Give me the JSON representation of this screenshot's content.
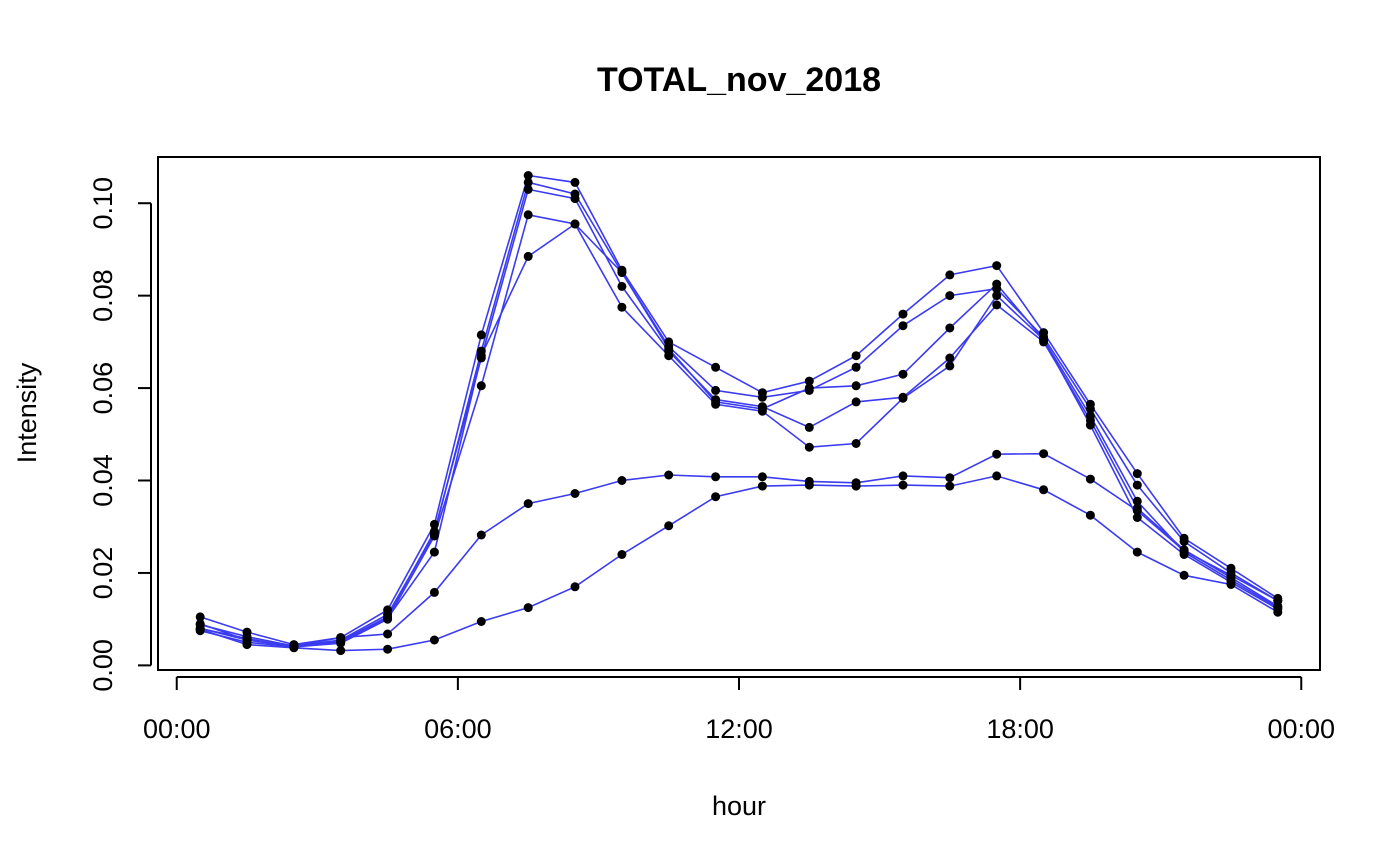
{
  "chart_data": {
    "type": "line",
    "title": "TOTAL_nov_2018",
    "xlabel": "hour",
    "ylabel": "Intensity",
    "x_tick_labels": [
      "00:00",
      "06:00",
      "12:00",
      "18:00",
      "00:00"
    ],
    "x_tick_hours": [
      0,
      6,
      12,
      18,
      24
    ],
    "y_ticks": [
      0.0,
      0.02,
      0.04,
      0.06,
      0.08,
      0.1
    ],
    "y_tick_labels": [
      "0.00",
      "0.02",
      "0.04",
      "0.06",
      "0.08",
      "0.10"
    ],
    "xlim": [
      -0.4,
      24.4
    ],
    "ylim": [
      -0.001,
      0.11
    ],
    "grid": false,
    "legend": "none",
    "x": [
      0.5,
      1.5,
      2.5,
      3.5,
      4.5,
      5.5,
      6.5,
      7.5,
      8.5,
      9.5,
      10.5,
      11.5,
      12.5,
      13.5,
      14.5,
      15.5,
      16.5,
      17.5,
      18.5,
      19.5,
      20.5,
      21.5,
      22.5,
      23.5
    ],
    "series": [
      {
        "values": [
          0.0105,
          0.0072,
          0.0045,
          0.006,
          0.012,
          0.0305,
          0.0715,
          0.106,
          0.1045,
          0.0855,
          0.07,
          0.0645,
          0.059,
          0.0615,
          0.067,
          0.076,
          0.0845,
          0.0865,
          0.072,
          0.0565,
          0.0415,
          0.0275,
          0.021,
          0.0145
        ]
      },
      {
        "values": [
          0.0088,
          0.0062,
          0.0042,
          0.0055,
          0.011,
          0.0285,
          0.068,
          0.1045,
          0.102,
          0.085,
          0.069,
          0.0595,
          0.058,
          0.0595,
          0.0645,
          0.0735,
          0.08,
          0.0815,
          0.071,
          0.0555,
          0.039,
          0.0268,
          0.02,
          0.014
        ]
      },
      {
        "values": [
          0.008,
          0.0058,
          0.004,
          0.0052,
          0.0105,
          0.029,
          0.0665,
          0.103,
          0.101,
          0.082,
          0.068,
          0.0575,
          0.056,
          0.0515,
          0.057,
          0.058,
          0.0665,
          0.078,
          0.07,
          0.053,
          0.034,
          0.025,
          0.019,
          0.0128
        ]
      },
      {
        "values": [
          0.0075,
          0.005,
          0.004,
          0.0048,
          0.01,
          0.028,
          0.0605,
          0.0975,
          0.0955,
          0.0775,
          0.067,
          0.0565,
          0.055,
          0.0472,
          0.048,
          0.0578,
          0.0648,
          0.08,
          0.0705,
          0.052,
          0.032,
          0.024,
          0.018,
          0.0122
        ]
      },
      {
        "values": [
          0.008,
          0.0055,
          0.0042,
          0.005,
          0.0102,
          0.0245,
          0.067,
          0.0885,
          0.0955,
          0.085,
          0.0685,
          0.057,
          0.0555,
          0.06,
          0.0605,
          0.063,
          0.073,
          0.0825,
          0.0705,
          0.054,
          0.0355,
          0.0245,
          0.0185,
          0.0125
        ]
      },
      {
        "values": [
          0.009,
          0.0055,
          0.0042,
          0.006,
          0.0068,
          0.0158,
          0.0282,
          0.035,
          0.0372,
          0.04,
          0.0412,
          0.0408,
          0.0408,
          0.0398,
          0.0395,
          0.041,
          0.0406,
          0.0457,
          0.0458,
          0.0403,
          0.0335,
          0.0248,
          0.0195,
          0.014
        ]
      },
      {
        "values": [
          0.0078,
          0.0045,
          0.0038,
          0.0032,
          0.0035,
          0.0055,
          0.0095,
          0.0125,
          0.017,
          0.024,
          0.0302,
          0.0365,
          0.0388,
          0.039,
          0.0388,
          0.039,
          0.0388,
          0.041,
          0.038,
          0.0325,
          0.0245,
          0.0195,
          0.0175,
          0.0115
        ]
      }
    ],
    "line_color": "#3b3bf0",
    "point_color": "#000000"
  }
}
